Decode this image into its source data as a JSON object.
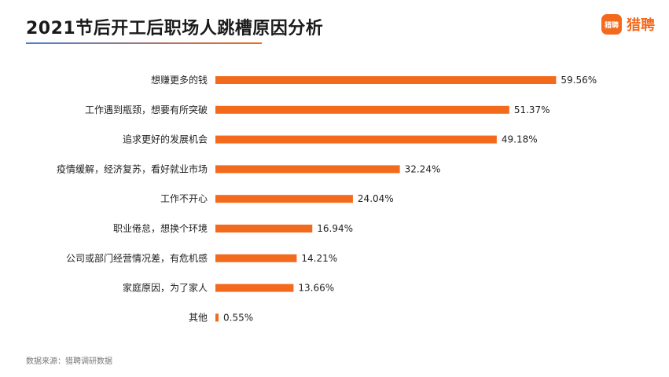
{
  "header": {
    "title": "2021节后开工后职场人跳槽原因分析",
    "logo_badge": "猎聘",
    "logo_text": "猎聘"
  },
  "footer": {
    "source": "数据来源：猎聘调研数据"
  },
  "colors": {
    "bar": "#f36a1d",
    "accent_blue": "#4a7fd6"
  },
  "chart_data": {
    "type": "bar",
    "orientation": "horizontal",
    "title": "2021节后开工后职场人跳槽原因分析",
    "xlim": [
      0,
      65
    ],
    "categories": [
      "想赚更多的钱",
      "工作遇到瓶颈，想要有所突破",
      "追求更好的发展机会",
      "疫情缓解，经济复苏，看好就业市场",
      "工作不开心",
      "职业倦怠，想换个环境",
      "公司或部门经营情况差，有危机感",
      "家庭原因，为了家人",
      "其他"
    ],
    "values": [
      59.56,
      51.37,
      49.18,
      32.24,
      24.04,
      16.94,
      14.21,
      13.66,
      0.55
    ],
    "value_labels": [
      "59.56%",
      "51.37%",
      "49.18%",
      "32.24%",
      "24.04%",
      "16.94%",
      "14.21%",
      "13.66%",
      "0.55%"
    ]
  }
}
